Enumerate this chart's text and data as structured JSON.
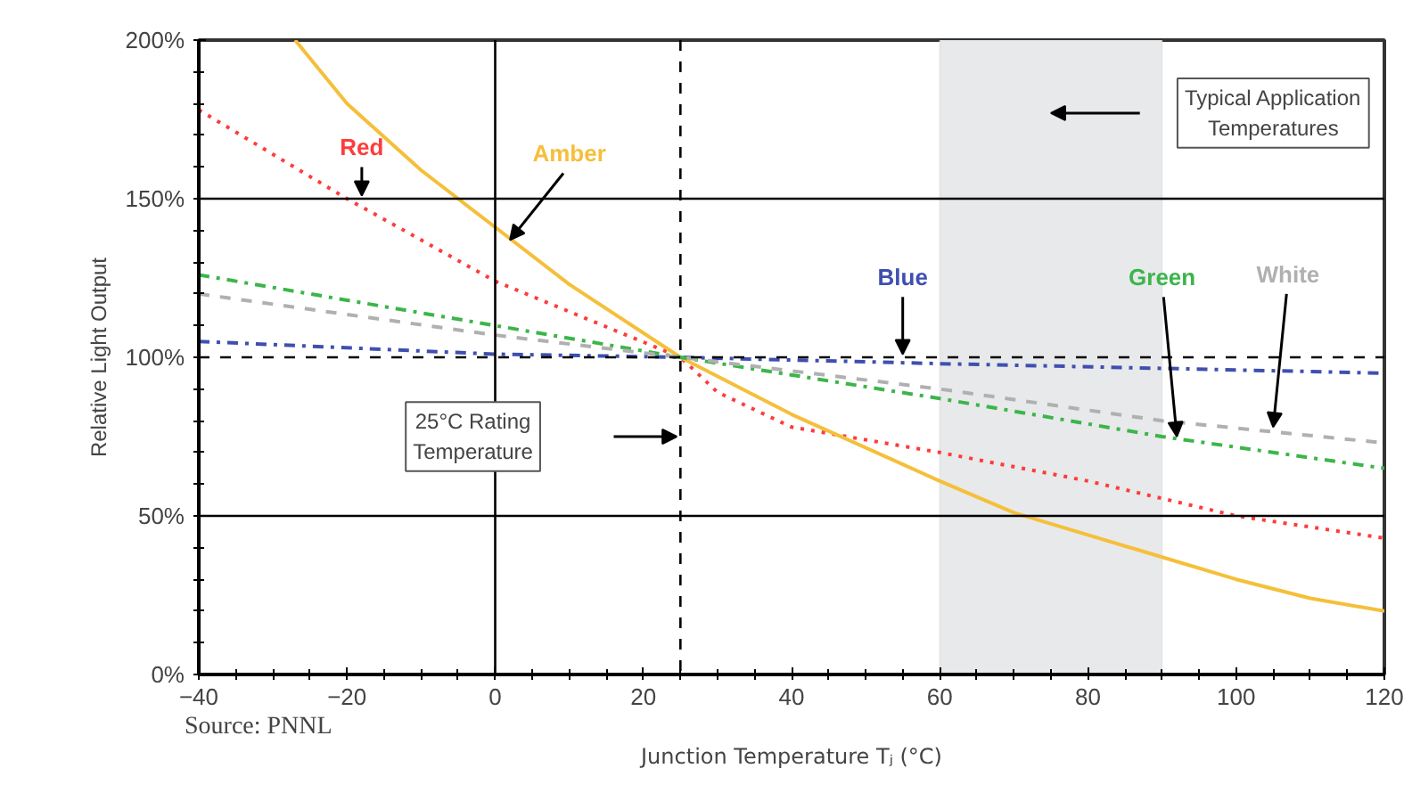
{
  "chart_data": {
    "type": "line",
    "xlabel": "Junction Temperature Tⱼ (°C)",
    "ylabel": "Relative Light Output",
    "xlim": [
      -40,
      120
    ],
    "ylim": [
      0,
      200
    ],
    "xticks": [
      -40,
      -20,
      0,
      20,
      40,
      60,
      80,
      100,
      120
    ],
    "yticks": [
      {
        "value": 0,
        "label": "0%"
      },
      {
        "value": 50,
        "label": "50%"
      },
      {
        "value": 100,
        "label": "100%"
      },
      {
        "value": 150,
        "label": "150%"
      },
      {
        "value": 200,
        "label": "200%"
      }
    ],
    "grid": false,
    "series": [
      {
        "name": "Red",
        "color": "#ff3b3b",
        "line_style": "dotted",
        "x": [
          -40,
          -20,
          0,
          25,
          30,
          40,
          60,
          80,
          100,
          120
        ],
        "values": [
          178,
          150,
          124,
          100,
          89,
          78,
          70,
          61,
          50,
          43
        ]
      },
      {
        "name": "Amber",
        "color": "#f5bf3a",
        "line_style": "solid",
        "x": [
          -27,
          -20,
          -10,
          0,
          10,
          25,
          40,
          60,
          70,
          80,
          90,
          100,
          110,
          120
        ],
        "values": [
          200,
          180,
          159,
          141,
          123,
          100,
          82,
          61,
          51,
          44,
          37,
          30,
          24,
          20
        ]
      },
      {
        "name": "Blue",
        "color": "#3f4fb0",
        "line_style": "dashdot",
        "x": [
          -40,
          0,
          25,
          60,
          120
        ],
        "values": [
          105,
          101,
          100,
          98,
          95
        ]
      },
      {
        "name": "Green",
        "color": "#3cb54a",
        "line_style": "dashdot",
        "x": [
          -40,
          0,
          25,
          60,
          90,
          120
        ],
        "values": [
          126,
          110,
          100,
          87,
          75,
          65
        ]
      },
      {
        "name": "White",
        "color": "#b0b0b0",
        "line_style": "dashed",
        "x": [
          -40,
          0,
          25,
          60,
          90,
          120
        ],
        "values": [
          120,
          107,
          100,
          90,
          80,
          73
        ]
      }
    ],
    "ref_lines": [
      {
        "axis": "y",
        "value": 100,
        "color": "#000000",
        "line_style": "dashed"
      },
      {
        "axis": "x",
        "value": 25,
        "color": "#000000",
        "line_style": "dashed"
      },
      {
        "axis": "x",
        "value": 0,
        "color": "#000000",
        "line_style": "solid"
      },
      {
        "axis": "y",
        "value": 50,
        "color": "#000000",
        "line_style": "solid"
      },
      {
        "axis": "y",
        "value": 150,
        "color": "#000000",
        "line_style": "solid"
      }
    ],
    "bands": [
      {
        "axis": "x",
        "from": 60,
        "to": 90,
        "color": "#e8e9ea"
      }
    ],
    "annotations": [
      "25°C Rating\nTemperature",
      "Typical Application\nTemperatures",
      "Source: PNNL"
    ]
  }
}
